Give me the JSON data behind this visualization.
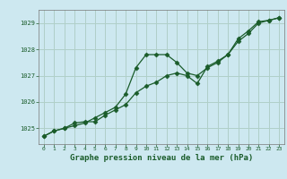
{
  "title": "Graphe pression niveau de la mer (hPa)",
  "background_color": "#cde8f0",
  "plot_bg_color": "#cde8f0",
  "grid_color": "#b0cfc8",
  "line_color": "#1a5c2a",
  "marker_color": "#1a5c2a",
  "xlim": [
    -0.5,
    23.5
  ],
  "ylim": [
    1024.4,
    1029.5
  ],
  "yticks": [
    1025,
    1026,
    1027,
    1028,
    1029
  ],
  "xticks": [
    0,
    1,
    2,
    3,
    4,
    5,
    6,
    7,
    8,
    9,
    10,
    11,
    12,
    13,
    14,
    15,
    16,
    17,
    18,
    19,
    20,
    21,
    22,
    23
  ],
  "series1_x": [
    0,
    1,
    2,
    3,
    4,
    5,
    6,
    7,
    8,
    9,
    10,
    11,
    12,
    13,
    14,
    15,
    16,
    17,
    18,
    19,
    20,
    21,
    22,
    23
  ],
  "series1_y": [
    1024.7,
    1024.9,
    1025.0,
    1025.1,
    1025.2,
    1025.4,
    1025.6,
    1025.8,
    1026.3,
    1027.3,
    1027.8,
    1027.8,
    1027.8,
    1027.5,
    1027.1,
    1027.0,
    1027.3,
    1027.5,
    1027.8,
    1028.3,
    1028.6,
    1029.0,
    1029.1,
    1029.2
  ],
  "series2_x": [
    0,
    1,
    2,
    3,
    4,
    5,
    6,
    7,
    8,
    9,
    10,
    11,
    12,
    13,
    14,
    15,
    16,
    17,
    18,
    19,
    20,
    21,
    22,
    23
  ],
  "series2_y": [
    1024.7,
    1024.9,
    1025.0,
    1025.2,
    1025.25,
    1025.25,
    1025.5,
    1025.7,
    1025.9,
    1026.35,
    1026.6,
    1026.75,
    1027.0,
    1027.1,
    1027.0,
    1026.7,
    1027.35,
    1027.55,
    1027.8,
    1028.4,
    1028.7,
    1029.05,
    1029.1,
    1029.2
  ],
  "ylabel_fontsize": 5.5,
  "xlabel_fontsize": 5.5,
  "title_fontsize": 6.5
}
